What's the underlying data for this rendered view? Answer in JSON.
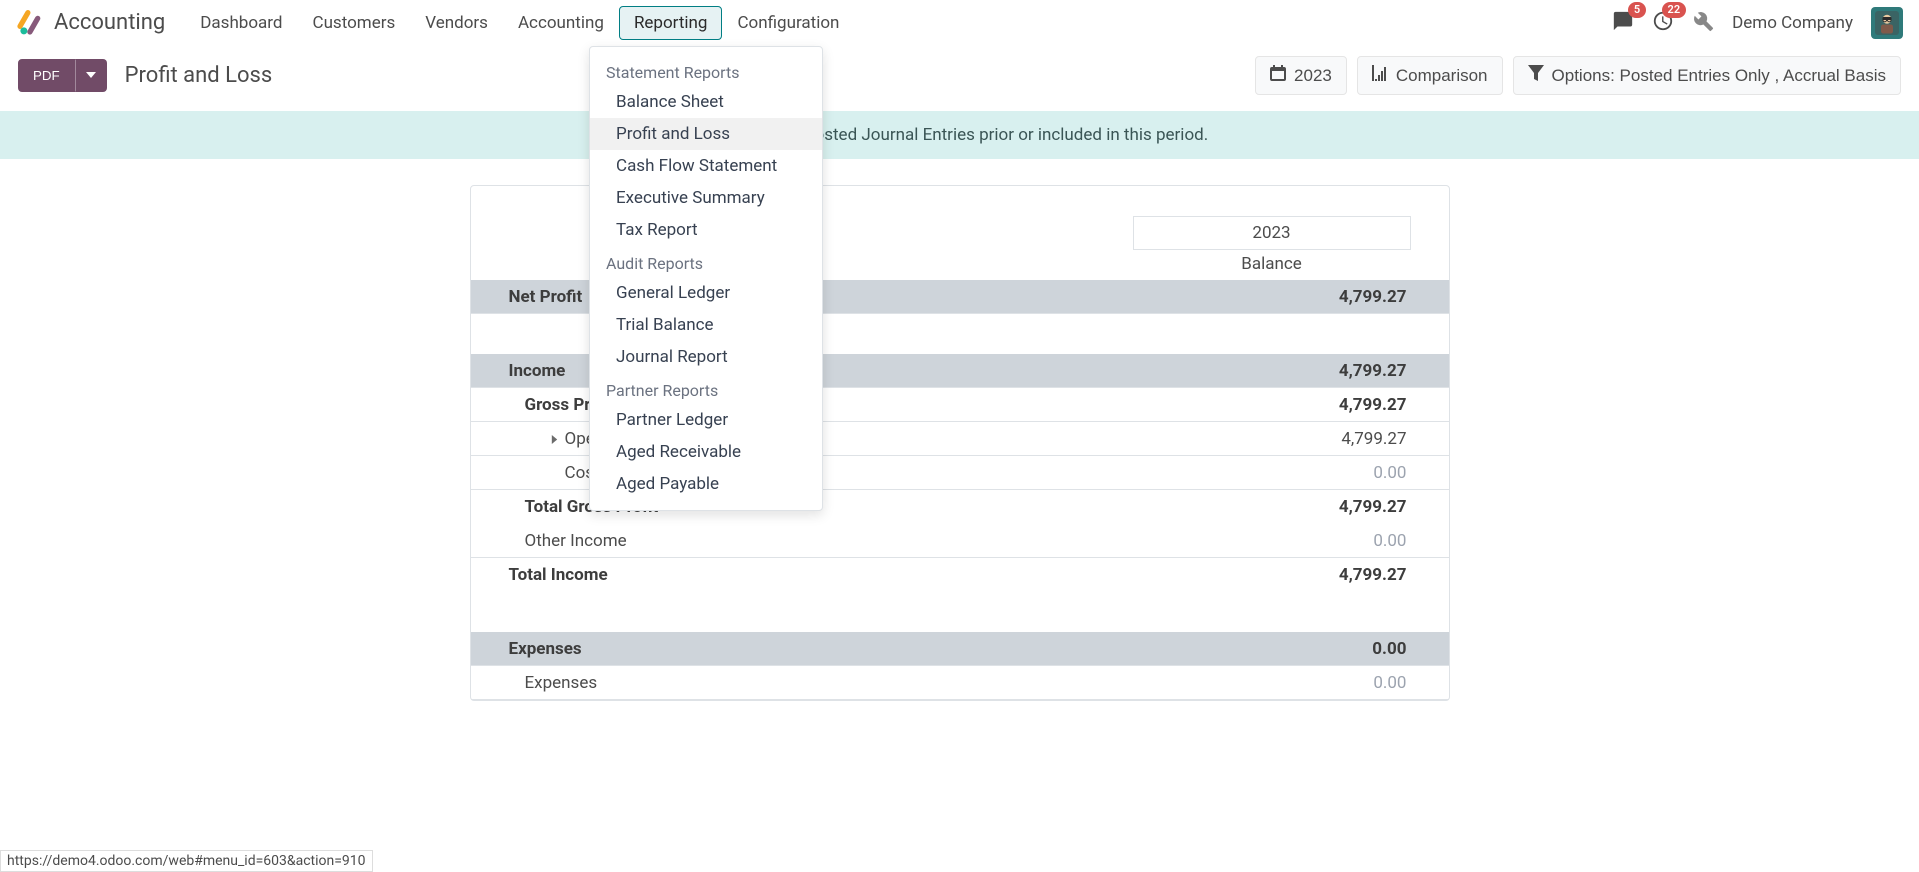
{
  "app": {
    "name": "Accounting"
  },
  "nav": {
    "items": [
      {
        "label": "Dashboard"
      },
      {
        "label": "Customers"
      },
      {
        "label": "Vendors"
      },
      {
        "label": "Accounting"
      },
      {
        "label": "Reporting"
      },
      {
        "label": "Configuration"
      }
    ]
  },
  "topright": {
    "messages_badge": "5",
    "activities_badge": "22",
    "company": "Demo Company"
  },
  "controls": {
    "pdf": "PDF",
    "title": "Profit and Loss",
    "year": "2023",
    "comparison": "Comparison",
    "options": "Options: Posted Entries Only , Accrual Basis"
  },
  "banner": "There are unposted Journal Entries prior or included in this period.",
  "report": {
    "year": "2023",
    "balance_label": "Balance",
    "rows": [
      {
        "label": "Net Profit",
        "val": "4,799.27",
        "type": "section"
      },
      {
        "label": "",
        "val": "",
        "type": "spacer"
      },
      {
        "label": "Income",
        "val": "4,799.27",
        "type": "section"
      },
      {
        "label": "Gross Profit",
        "val": "4,799.27",
        "type": "bold",
        "indent": 1
      },
      {
        "label": "Operating Income",
        "val": "4,799.27",
        "type": "plain",
        "indent": 2,
        "caret": true
      },
      {
        "label": "Cost of Revenue",
        "val": "0.00",
        "type": "plain",
        "indent": 2,
        "zero": true
      },
      {
        "label": "Total Gross Profit",
        "val": "4,799.27",
        "type": "total",
        "indent": 1
      },
      {
        "label": "Other Income",
        "val": "0.00",
        "type": "plain",
        "indent": 1,
        "zero": true
      },
      {
        "label": "Total Income",
        "val": "4,799.27",
        "type": "total"
      },
      {
        "label": "",
        "val": "",
        "type": "spacer"
      },
      {
        "label": "Expenses",
        "val": "0.00",
        "type": "section",
        "zero": true
      },
      {
        "label": "Expenses",
        "val": "0.00",
        "type": "plain",
        "indent": 1,
        "zero": true
      }
    ]
  },
  "dropdown": {
    "sections": [
      {
        "header": "Statement Reports",
        "items": [
          {
            "label": "Balance Sheet"
          },
          {
            "label": "Profit and Loss",
            "active": true
          },
          {
            "label": "Cash Flow Statement"
          },
          {
            "label": "Executive Summary"
          },
          {
            "label": "Tax Report"
          }
        ]
      },
      {
        "header": "Audit Reports",
        "items": [
          {
            "label": "General Ledger"
          },
          {
            "label": "Trial Balance"
          },
          {
            "label": "Journal Report"
          }
        ]
      },
      {
        "header": "Partner Reports",
        "items": [
          {
            "label": "Partner Ledger"
          },
          {
            "label": "Aged Receivable"
          },
          {
            "label": "Aged Payable"
          }
        ]
      }
    ]
  },
  "status_url": "https://demo4.odoo.com/web#menu_id=603&action=910"
}
